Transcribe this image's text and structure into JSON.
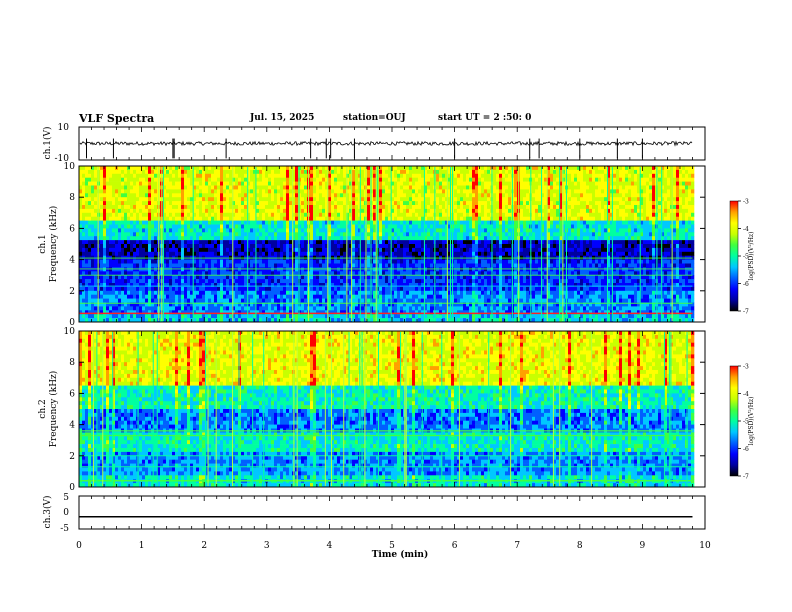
{
  "header": {
    "title": "VLF Spectra",
    "date": "Jul. 15, 2025",
    "station": "station=OUJ",
    "start": "start UT =  2 :50: 0"
  },
  "colors": {
    "spectrum_ramp": [
      "#000000",
      "#0000a0",
      "#0000ff",
      "#0060ff",
      "#00c8ff",
      "#00ffa0",
      "#40ff40",
      "#c8ff00",
      "#ffff00",
      "#ffa000",
      "#ff0000"
    ]
  },
  "chart_data": [
    {
      "id": "ch1-waveform",
      "type": "line",
      "ylabel": "ch.1(V)",
      "ylim": [
        -10,
        10
      ],
      "yticks": [
        "10",
        "-10"
      ],
      "baseline": 0,
      "spikes_min": [
        0.12,
        0.55,
        1.5,
        1.52,
        2.35,
        3.7,
        3.95,
        4.02,
        4.4,
        6.0,
        7.2,
        7.35,
        8.0,
        8.6,
        9.0
      ],
      "xlim": [
        0,
        10
      ]
    },
    {
      "id": "ch1-spectrogram",
      "type": "heatmap",
      "ylabel": "ch.1",
      "ylabel2": "Frequency (kHz)",
      "ylim": [
        0,
        10
      ],
      "yticks": [
        "0",
        "2",
        "4",
        "6",
        "8",
        "10"
      ],
      "xlim": [
        0,
        9.8
      ],
      "colorbar": {
        "label": "log(PSD)(V²/Hz)",
        "range": [
          -7,
          -3
        ],
        "ticks": [
          "-3",
          "-4",
          "-5",
          "-6",
          "-7"
        ]
      }
    },
    {
      "id": "ch2-spectrogram",
      "type": "heatmap",
      "ylabel": "ch.2",
      "ylabel2": "Frequency (kHz)",
      "ylim": [
        0,
        10
      ],
      "yticks": [
        "0",
        "2",
        "4",
        "6",
        "8",
        "10"
      ],
      "xlim": [
        0,
        9.8
      ],
      "colorbar": {
        "label": "log(PSD)(V²/Hz)",
        "range": [
          -7,
          -3
        ],
        "ticks": [
          "-3",
          "-4",
          "-5",
          "-6",
          "-7"
        ]
      }
    },
    {
      "id": "ch3-waveform",
      "type": "line",
      "ylabel": "ch.3(V)",
      "ylim": [
        -5,
        5
      ],
      "yticks": [
        "5",
        "0",
        "-5"
      ],
      "constant_value": -1.3,
      "xlim": [
        0,
        10
      ]
    }
  ],
  "x_axis": {
    "label": "Time (min)",
    "range": [
      0,
      10
    ],
    "ticks": [
      "0",
      "1",
      "2",
      "3",
      "4",
      "5",
      "6",
      "7",
      "8",
      "9",
      "10"
    ]
  }
}
